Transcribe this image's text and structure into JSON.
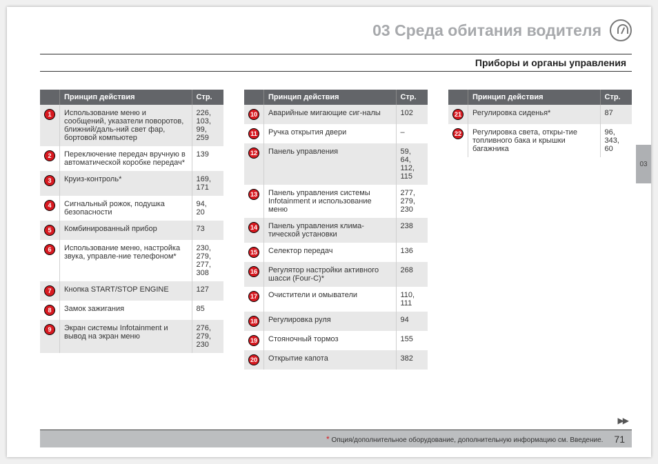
{
  "header": {
    "chapter_title": "03 Среда обитания водителя"
  },
  "subheader": {
    "text": "Приборы и органы управления"
  },
  "table_headers": {
    "principle": "Принцип действия",
    "page": "Стр."
  },
  "side_tab": "03",
  "arrows": "▶▶",
  "footer": {
    "star": "*",
    "note": "Опция/дополнительное оборудование, дополнительную информацию см. Введение.",
    "page_number": "71"
  },
  "columns": [
    [
      {
        "n": "1",
        "desc": "Использование меню и сообщений, указатели поворотов, ближний/даль-ний свет фар, бортовой компьютер",
        "pg": "226, 103, 99, 259"
      },
      {
        "n": "2",
        "desc": "Переключение передач вручную в автоматической коробке передач*",
        "pg": "139"
      },
      {
        "n": "3",
        "desc": "Круиз-контроль*",
        "pg": "169, 171"
      },
      {
        "n": "4",
        "desc": "Сигнальный рожок, подушка безопасности",
        "pg": "94, 20"
      },
      {
        "n": "5",
        "desc": "Комбинированный прибор",
        "pg": "73"
      },
      {
        "n": "6",
        "desc": "Использование меню, настройка звука, управле-ние телефоном*",
        "pg": "230, 279, 277, 308"
      },
      {
        "n": "7",
        "desc": "Кнопка START/STOP ENGINE",
        "pg": "127"
      },
      {
        "n": "8",
        "desc": "Замок зажигания",
        "pg": "85"
      },
      {
        "n": "9",
        "desc": "Экран системы Infotainment и вывод на экран меню",
        "pg": "276, 279, 230"
      }
    ],
    [
      {
        "n": "10",
        "desc": "Аварийные мигающие сиг-налы",
        "pg": "102"
      },
      {
        "n": "11",
        "desc": "Ручка открытия двери",
        "pg": "–"
      },
      {
        "n": "12",
        "desc": "Панель управления",
        "pg": "59, 64, 112, 115"
      },
      {
        "n": "13",
        "desc": "Панель управления системы Infotainment и использование меню",
        "pg": "277, 279, 230"
      },
      {
        "n": "14",
        "desc": "Панель управления клима-тической установки",
        "pg": "238"
      },
      {
        "n": "15",
        "desc": "Селектор передач",
        "pg": "136"
      },
      {
        "n": "16",
        "desc": "Регулятор настройки активного шасси (Four-C)*",
        "pg": "268"
      },
      {
        "n": "17",
        "desc": "Очистители и омыватели",
        "pg": "110, 111"
      },
      {
        "n": "18",
        "desc": "Регулировка руля",
        "pg": "94"
      },
      {
        "n": "19",
        "desc": "Стояночный тормоз",
        "pg": "155"
      },
      {
        "n": "20",
        "desc": "Открытие капота",
        "pg": "382"
      }
    ],
    [
      {
        "n": "21",
        "desc": "Регулировка сиденья*",
        "pg": "87"
      },
      {
        "n": "22",
        "desc": "Регулировка света, откры-тие топливного бака и крышки багажника",
        "pg": "96, 343, 60"
      }
    ]
  ]
}
